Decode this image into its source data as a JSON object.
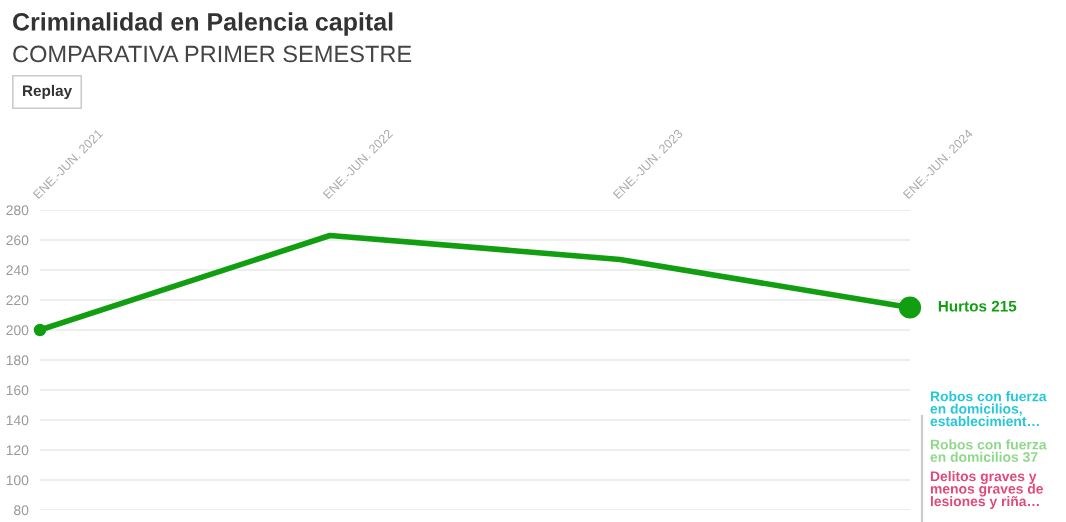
{
  "chart_data": {
    "type": "line",
    "title": "Criminalidad en Palencia capital",
    "subtitle": "COMPARATIVA PRIMER SEMESTRE",
    "categories": [
      "ENE.-JUN. 2021",
      "ENE.-JUN. 2022",
      "ENE.-JUN. 2023",
      "ENE.-JUN. 2024"
    ],
    "series": [
      {
        "name": "Hurtos",
        "color": "#119e11",
        "values": [
          200,
          263,
          247,
          215
        ],
        "value_labels": [
          null,
          null,
          null,
          "215"
        ]
      }
    ],
    "ylim": [
      80,
      280
    ],
    "yticks": [
      80,
      100,
      120,
      140,
      160,
      180,
      200,
      220,
      240,
      260,
      280
    ],
    "grid": "y",
    "legend": false,
    "annotations": [
      "Replay",
      "Robos con fuerza\nen domicilios,\nestablecimient…",
      "Robos con fuerza\nen domicilios 37",
      "Delitos graves y\nmenos graves de\nlesiones y riña…"
    ]
  }
}
